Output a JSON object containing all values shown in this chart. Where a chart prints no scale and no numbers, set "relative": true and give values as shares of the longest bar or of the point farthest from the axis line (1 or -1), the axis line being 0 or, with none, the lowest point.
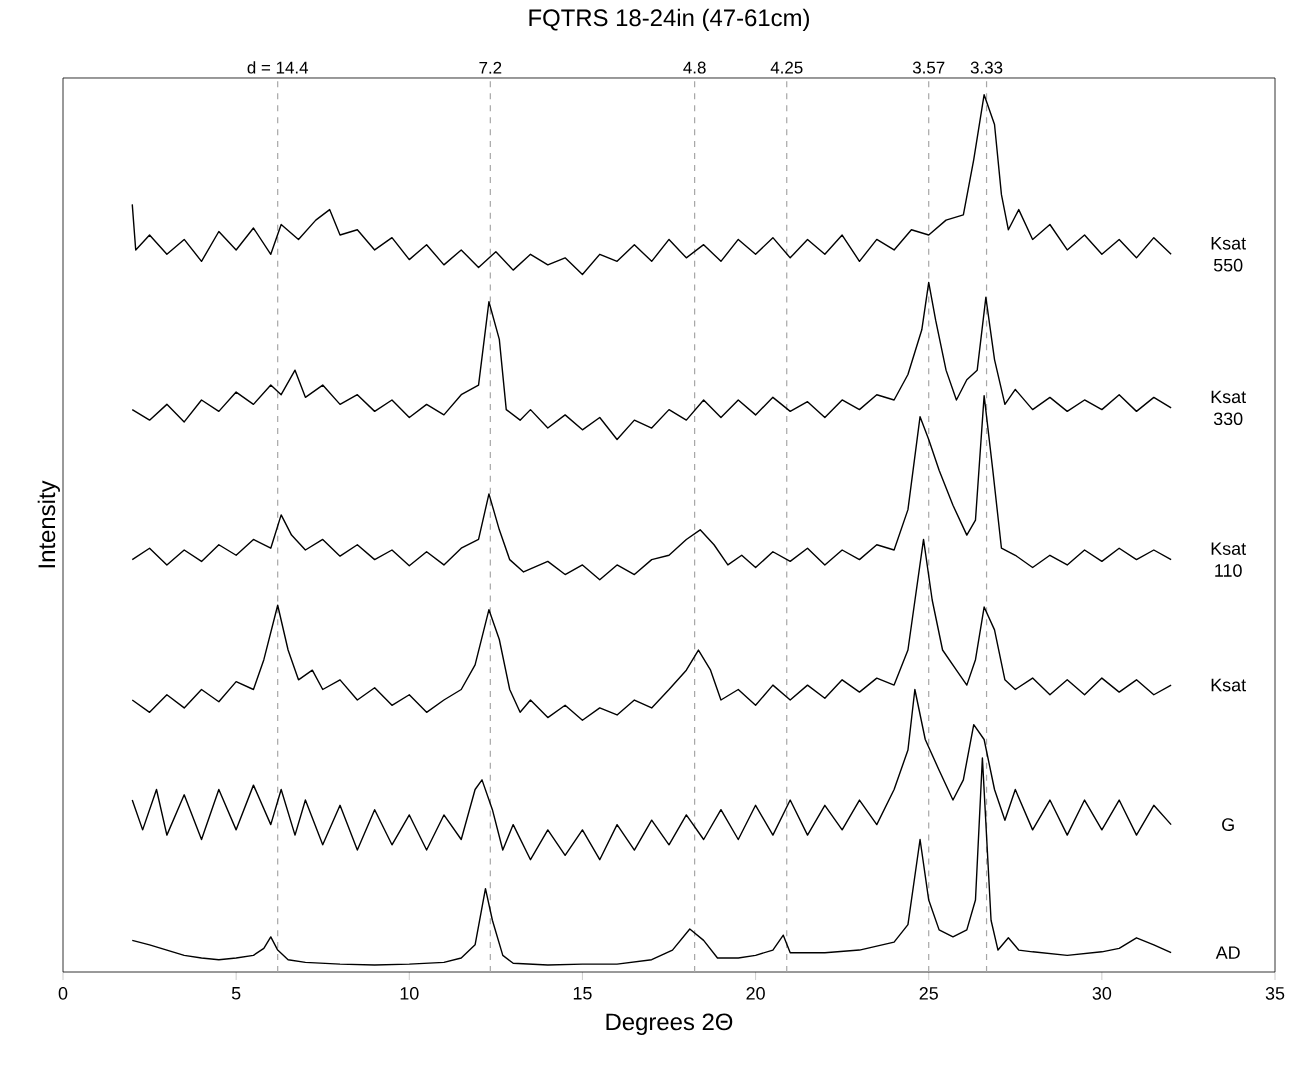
{
  "chart_data": {
    "type": "line",
    "title": "FQTRS 18-24in (47-61cm)",
    "xlabel": "Degrees 2Θ",
    "ylabel": "Intensity",
    "relative": true,
    "xlim": [
      0,
      35
    ],
    "xticks": [
      0,
      5,
      10,
      15,
      20,
      25,
      30,
      35
    ],
    "ref_lines": [
      {
        "axis": "x",
        "value": 6.2,
        "color": "#a6a6a6",
        "line_style": "dashed"
      },
      {
        "axis": "x",
        "value": 12.34,
        "color": "#a6a6a6",
        "line_style": "dashed"
      },
      {
        "axis": "x",
        "value": 18.24,
        "color": "#a6a6a6",
        "line_style": "dashed"
      },
      {
        "axis": "x",
        "value": 20.9,
        "color": "#a6a6a6",
        "line_style": "dashed"
      },
      {
        "axis": "x",
        "value": 25.0,
        "color": "#a6a6a6",
        "line_style": "dashed"
      },
      {
        "axis": "x",
        "value": 26.67,
        "color": "#a6a6a6",
        "line_style": "dashed"
      }
    ],
    "annotations": [
      "d = 14.4",
      "7.2",
      "4.8",
      "4.25",
      "3.57",
      "3.33"
    ],
    "series": [
      {
        "name": "Ksat 550",
        "color": "#000000",
        "x": [
          2.0,
          2.1,
          2.5,
          3,
          3.5,
          4,
          4.5,
          5,
          5.5,
          6,
          6.3,
          6.8,
          7.3,
          7.7,
          8,
          8.5,
          9,
          9.5,
          10,
          10.5,
          11,
          11.5,
          12,
          12.5,
          13,
          13.5,
          14,
          14.5,
          15,
          15.5,
          16,
          16.5,
          17,
          17.5,
          18,
          18.5,
          19,
          19.5,
          20,
          20.5,
          21,
          21.5,
          22,
          22.5,
          23,
          23.5,
          24,
          24.5,
          25,
          25.5,
          26,
          26.3,
          26.6,
          26.9,
          27.1,
          27.3,
          27.6,
          28,
          28.5,
          29,
          29.5,
          30,
          30.5,
          31,
          31.5,
          32
        ],
        "values": [
          0.875,
          0.823,
          0.84,
          0.818,
          0.835,
          0.81,
          0.844,
          0.823,
          0.848,
          0.818,
          0.852,
          0.835,
          0.857,
          0.869,
          0.84,
          0.846,
          0.823,
          0.837,
          0.812,
          0.829,
          0.806,
          0.823,
          0.803,
          0.821,
          0.8,
          0.818,
          0.806,
          0.814,
          0.795,
          0.818,
          0.81,
          0.829,
          0.81,
          0.835,
          0.814,
          0.829,
          0.81,
          0.835,
          0.818,
          0.837,
          0.814,
          0.835,
          0.818,
          0.84,
          0.81,
          0.835,
          0.823,
          0.846,
          0.84,
          0.857,
          0.863,
          0.926,
          1.0,
          0.966,
          0.886,
          0.846,
          0.869,
          0.835,
          0.852,
          0.823,
          0.84,
          0.818,
          0.835,
          0.814,
          0.837,
          0.818
        ]
      },
      {
        "name": "Ksat 330",
        "color": "#000000",
        "x": [
          2,
          2.5,
          3,
          3.5,
          4,
          4.5,
          5,
          5.5,
          6,
          6.3,
          6.7,
          7,
          7.5,
          8,
          8.5,
          9,
          9.5,
          10,
          10.5,
          11,
          11.5,
          12,
          12.3,
          12.6,
          12.8,
          13.2,
          13.5,
          14,
          14.5,
          15,
          15.5,
          16,
          16.5,
          17,
          17.5,
          18,
          18.5,
          19,
          19.5,
          20,
          20.5,
          21,
          21.5,
          22,
          22.5,
          23,
          23.5,
          24,
          24.4,
          24.8,
          25.0,
          25.2,
          25.5,
          25.8,
          26.1,
          26.4,
          26.65,
          26.9,
          27.2,
          27.5,
          28,
          28.5,
          29,
          29.5,
          30,
          30.5,
          31,
          31.5,
          32
        ],
        "values": [
          0.641,
          0.629,
          0.647,
          0.627,
          0.652,
          0.639,
          0.661,
          0.647,
          0.669,
          0.658,
          0.686,
          0.655,
          0.669,
          0.647,
          0.658,
          0.639,
          0.652,
          0.632,
          0.647,
          0.635,
          0.658,
          0.669,
          0.764,
          0.721,
          0.641,
          0.629,
          0.641,
          0.62,
          0.635,
          0.618,
          0.632,
          0.607,
          0.629,
          0.62,
          0.641,
          0.629,
          0.652,
          0.632,
          0.652,
          0.635,
          0.655,
          0.639,
          0.65,
          0.632,
          0.652,
          0.641,
          0.658,
          0.652,
          0.681,
          0.732,
          0.786,
          0.743,
          0.686,
          0.652,
          0.675,
          0.686,
          0.769,
          0.698,
          0.647,
          0.664,
          0.641,
          0.655,
          0.639,
          0.652,
          0.641,
          0.658,
          0.639,
          0.655,
          0.643
        ]
      },
      {
        "name": "Ksat 110",
        "color": "#000000",
        "x": [
          2,
          2.5,
          3,
          3.5,
          4,
          4.5,
          5,
          5.5,
          6,
          6.3,
          6.6,
          7,
          7.5,
          8,
          8.5,
          9,
          9.5,
          10,
          10.5,
          11,
          11.5,
          12,
          12.3,
          12.6,
          12.9,
          13.3,
          14,
          14.5,
          15,
          15.5,
          16,
          16.5,
          17,
          17.5,
          18,
          18.4,
          18.8,
          19.2,
          19.6,
          20,
          20.5,
          21,
          21.5,
          22,
          22.5,
          23,
          23.5,
          24,
          24.4,
          24.75,
          25.0,
          25.3,
          25.7,
          26.1,
          26.35,
          26.6,
          26.85,
          27.1,
          27.5,
          28,
          28.5,
          29,
          29.5,
          30,
          30.5,
          31,
          31.5,
          32
        ],
        "values": [
          0.47,
          0.483,
          0.464,
          0.481,
          0.468,
          0.487,
          0.475,
          0.493,
          0.483,
          0.521,
          0.498,
          0.481,
          0.493,
          0.474,
          0.487,
          0.47,
          0.481,
          0.463,
          0.479,
          0.464,
          0.483,
          0.493,
          0.545,
          0.504,
          0.47,
          0.456,
          0.468,
          0.453,
          0.464,
          0.447,
          0.464,
          0.453,
          0.47,
          0.475,
          0.493,
          0.504,
          0.487,
          0.464,
          0.475,
          0.461,
          0.479,
          0.468,
          0.483,
          0.464,
          0.481,
          0.47,
          0.487,
          0.481,
          0.527,
          0.633,
          0.607,
          0.572,
          0.532,
          0.498,
          0.515,
          0.657,
          0.572,
          0.483,
          0.475,
          0.461,
          0.475,
          0.464,
          0.481,
          0.468,
          0.483,
          0.47,
          0.481,
          0.47
        ]
      },
      {
        "name": "Ksat",
        "color": "#000000",
        "x": [
          2,
          2.5,
          3,
          3.5,
          4,
          4.5,
          5,
          5.5,
          5.8,
          6.2,
          6.5,
          6.8,
          7.2,
          7.5,
          8,
          8.5,
          9,
          9.5,
          10,
          10.5,
          11,
          11.5,
          11.9,
          12.3,
          12.6,
          12.9,
          13.2,
          13.5,
          14,
          14.5,
          15,
          15.5,
          16,
          16.5,
          17,
          17.5,
          18,
          18.35,
          18.7,
          19,
          19.5,
          20,
          20.5,
          21,
          21.5,
          22,
          22.5,
          23,
          23.5,
          24,
          24.4,
          24.85,
          25.1,
          25.4,
          25.8,
          26.1,
          26.35,
          26.6,
          26.9,
          27.2,
          27.5,
          28,
          28.5,
          29,
          29.5,
          30,
          30.5,
          31,
          31.5,
          32
        ],
        "values": [
          0.31,
          0.296,
          0.316,
          0.301,
          0.322,
          0.308,
          0.331,
          0.322,
          0.356,
          0.418,
          0.367,
          0.333,
          0.344,
          0.322,
          0.333,
          0.31,
          0.324,
          0.304,
          0.316,
          0.296,
          0.31,
          0.322,
          0.35,
          0.413,
          0.379,
          0.322,
          0.296,
          0.31,
          0.29,
          0.304,
          0.287,
          0.301,
          0.293,
          0.31,
          0.301,
          0.322,
          0.344,
          0.367,
          0.344,
          0.31,
          0.322,
          0.304,
          0.327,
          0.31,
          0.327,
          0.312,
          0.333,
          0.319,
          0.335,
          0.327,
          0.367,
          0.493,
          0.424,
          0.367,
          0.344,
          0.327,
          0.356,
          0.416,
          0.39,
          0.333,
          0.322,
          0.335,
          0.316,
          0.333,
          0.316,
          0.335,
          0.319,
          0.333,
          0.316,
          0.327
        ]
      },
      {
        "name": "G",
        "color": "#000000",
        "x": [
          2,
          2.3,
          2.7,
          3,
          3.5,
          4,
          4.5,
          5,
          5.5,
          6,
          6.3,
          6.7,
          7,
          7.5,
          8,
          8.5,
          9,
          9.5,
          10,
          10.5,
          11,
          11.5,
          11.9,
          12.1,
          12.4,
          12.7,
          13,
          13.5,
          14,
          14.5,
          15,
          15.5,
          16,
          16.5,
          17,
          17.5,
          18,
          18.5,
          19,
          19.5,
          20,
          20.5,
          21,
          21.5,
          22,
          22.5,
          23,
          23.5,
          24,
          24.4,
          24.6,
          24.9,
          25.3,
          25.7,
          26,
          26.3,
          26.6,
          26.9,
          27.2,
          27.5,
          28,
          28.5,
          29,
          29.5,
          30,
          30.5,
          31,
          31.5,
          32
        ],
        "values": [
          0.196,
          0.162,
          0.208,
          0.156,
          0.202,
          0.151,
          0.208,
          0.162,
          0.213,
          0.168,
          0.208,
          0.156,
          0.196,
          0.145,
          0.19,
          0.139,
          0.185,
          0.145,
          0.179,
          0.139,
          0.179,
          0.151,
          0.208,
          0.219,
          0.185,
          0.139,
          0.168,
          0.128,
          0.162,
          0.133,
          0.162,
          0.128,
          0.168,
          0.139,
          0.173,
          0.145,
          0.179,
          0.151,
          0.185,
          0.151,
          0.19,
          0.156,
          0.196,
          0.156,
          0.19,
          0.162,
          0.196,
          0.168,
          0.208,
          0.253,
          0.322,
          0.265,
          0.23,
          0.196,
          0.219,
          0.282,
          0.265,
          0.208,
          0.173,
          0.208,
          0.162,
          0.196,
          0.156,
          0.196,
          0.162,
          0.196,
          0.156,
          0.19,
          0.168
        ]
      },
      {
        "name": "AD",
        "color": "#000000",
        "x": [
          2,
          2.5,
          3,
          3.5,
          4,
          4.5,
          5,
          5.5,
          5.8,
          6.0,
          6.2,
          6.5,
          7,
          8,
          9,
          10,
          11,
          11.5,
          11.9,
          12.2,
          12.4,
          12.7,
          13,
          14,
          15,
          16,
          17,
          17.6,
          18.1,
          18.5,
          18.9,
          19.5,
          20,
          20.5,
          20.8,
          21,
          22,
          23,
          24,
          24.4,
          24.75,
          25.0,
          25.3,
          25.7,
          26.1,
          26.35,
          26.55,
          26.8,
          27.0,
          27.3,
          27.6,
          28,
          29,
          30,
          30.5,
          31,
          31.5,
          32
        ],
        "values": [
          0.036,
          0.031,
          0.025,
          0.019,
          0.016,
          0.014,
          0.016,
          0.019,
          0.027,
          0.04,
          0.025,
          0.014,
          0.011,
          0.009,
          0.008,
          0.009,
          0.011,
          0.016,
          0.031,
          0.095,
          0.059,
          0.019,
          0.01,
          0.008,
          0.009,
          0.009,
          0.014,
          0.025,
          0.049,
          0.036,
          0.016,
          0.016,
          0.019,
          0.025,
          0.042,
          0.022,
          0.022,
          0.025,
          0.034,
          0.054,
          0.151,
          0.082,
          0.048,
          0.04,
          0.048,
          0.082,
          0.244,
          0.059,
          0.025,
          0.039,
          0.025,
          0.023,
          0.019,
          0.023,
          0.027,
          0.039,
          0.031,
          0.022
        ]
      }
    ]
  }
}
